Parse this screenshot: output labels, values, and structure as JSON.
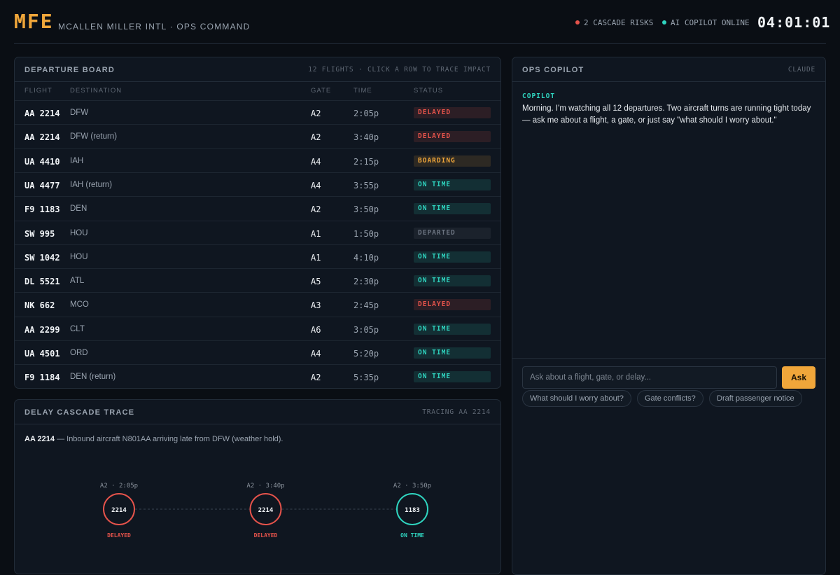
{
  "header": {
    "code": "MFE",
    "title": "MCALLEN MILLER INTL · OPS COMMAND",
    "risks": "2 CASCADE RISKS",
    "copilot_status": "AI COPILOT ONLINE",
    "clock": "04:01:01"
  },
  "departure_board": {
    "title": "DEPARTURE BOARD",
    "hint": "12 FLIGHTS · CLICK A ROW TO TRACE IMPACT",
    "columns": [
      "FLIGHT",
      "DESTINATION",
      "GATE",
      "TIME",
      "STATUS"
    ],
    "rows": [
      {
        "flight": "AA 2214",
        "destination": "DFW",
        "gate": "A2",
        "time": "2:05p",
        "status": "DELAYED",
        "color": "#e5534b"
      },
      {
        "flight": "AA 2214",
        "destination": "DFW (return)",
        "gate": "A2",
        "time": "3:40p",
        "status": "DELAYED",
        "color": "#e5534b"
      },
      {
        "flight": "UA 4410",
        "destination": "IAH",
        "gate": "A4",
        "time": "2:15p",
        "status": "BOARDING",
        "color": "#f0a63a"
      },
      {
        "flight": "UA 4477",
        "destination": "IAH (return)",
        "gate": "A4",
        "time": "3:55p",
        "status": "ON TIME",
        "color": "#2fd4bf"
      },
      {
        "flight": "F9 1183",
        "destination": "DEN",
        "gate": "A2",
        "time": "3:50p",
        "status": "ON TIME",
        "color": "#2fd4bf"
      },
      {
        "flight": "SW 995",
        "destination": "HOU",
        "gate": "A1",
        "time": "1:50p",
        "status": "DEPARTED",
        "color": "#6b7380"
      },
      {
        "flight": "SW 1042",
        "destination": "HOU",
        "gate": "A1",
        "time": "4:10p",
        "status": "ON TIME",
        "color": "#2fd4bf"
      },
      {
        "flight": "DL 5521",
        "destination": "ATL",
        "gate": "A5",
        "time": "2:30p",
        "status": "ON TIME",
        "color": "#2fd4bf"
      },
      {
        "flight": "NK 662",
        "destination": "MCO",
        "gate": "A3",
        "time": "2:45p",
        "status": "DELAYED",
        "color": "#e5534b"
      },
      {
        "flight": "AA 2299",
        "destination": "CLT",
        "gate": "A6",
        "time": "3:05p",
        "status": "ON TIME",
        "color": "#2fd4bf"
      },
      {
        "flight": "UA 4501",
        "destination": "ORD",
        "gate": "A4",
        "time": "5:20p",
        "status": "ON TIME",
        "color": "#2fd4bf"
      },
      {
        "flight": "F9 1184",
        "destination": "DEN (return)",
        "gate": "A2",
        "time": "5:35p",
        "status": "ON TIME",
        "color": "#2fd4bf"
      }
    ]
  },
  "cascade": {
    "title": "DELAY CASCADE TRACE",
    "tracing": "TRACING AA 2214",
    "flight": "AA 2214",
    "description": "— Inbound aircraft N801AA arriving late from DFW (weather hold).",
    "nodes": [
      {
        "slot": "A2 · 2:05p",
        "label": "2214",
        "status": "DELAYED",
        "color": "#e5534b"
      },
      {
        "slot": "A2 · 3:40p",
        "label": "2214",
        "status": "DELAYED",
        "color": "#e5534b"
      },
      {
        "slot": "A2 · 3:50p",
        "label": "1183",
        "status": "ON TIME",
        "color": "#2fd4bf"
      }
    ]
  },
  "copilot": {
    "title": "OPS COPILOT",
    "model": "CLAUDE",
    "sender": "COPILOT",
    "message": "Morning. I'm watching all 12 departures. Two aircraft turns are running tight today — ask me about a flight, a gate, or just say \"what should I worry about.\"",
    "suggestions": [
      "What should I worry about?",
      "Gate conflicts?",
      "Draft passenger notice"
    ],
    "input_placeholder": "Ask about a flight, gate, or delay...",
    "button": "Ask"
  }
}
